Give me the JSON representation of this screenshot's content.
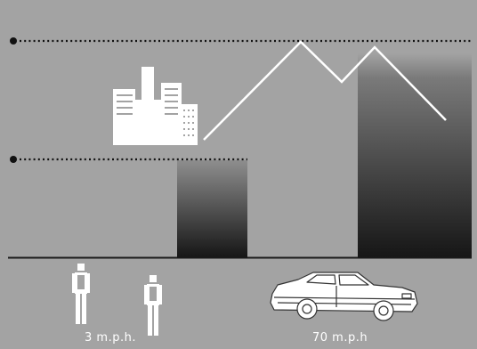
{
  "colors": {
    "background": "#a3a3a3",
    "ground_line": "#1a1a1a",
    "dotted_line": "#111111",
    "gradient_dark": "#161616",
    "figure_white": "#ffffff"
  },
  "icons": [
    "city-buildings-icon",
    "pedestrian-icon",
    "car-icon"
  ],
  "labels": {
    "walking_speed": "3 m.p.h.",
    "driving_speed": "70 m.p.h"
  }
}
